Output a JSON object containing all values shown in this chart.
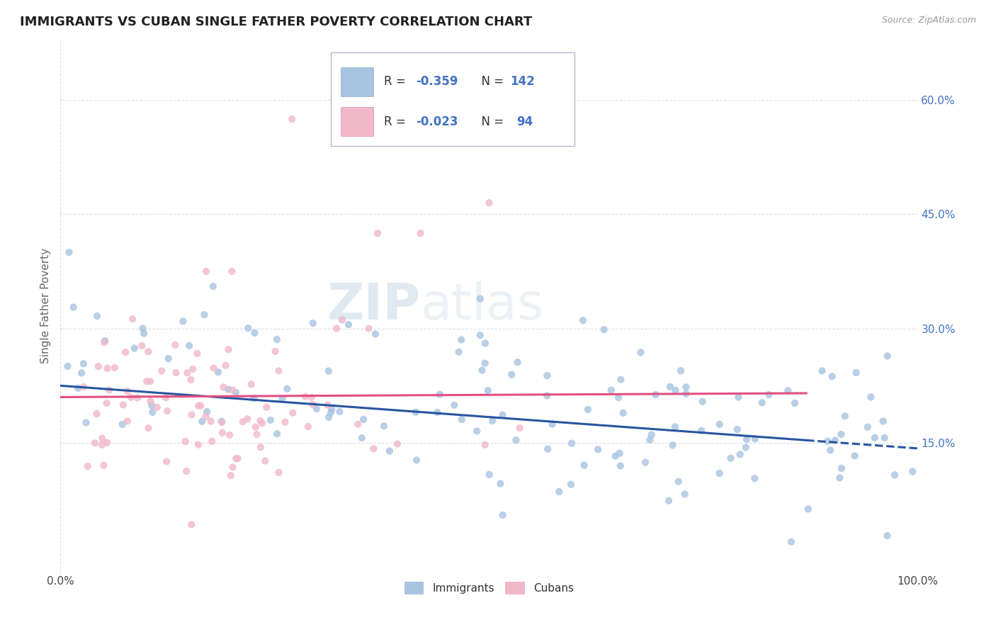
{
  "title": "IMMIGRANTS VS CUBAN SINGLE FATHER POVERTY CORRELATION CHART",
  "source": "Source: ZipAtlas.com",
  "ylabel": "Single Father Poverty",
  "xlim": [
    0.0,
    1.0
  ],
  "ylim": [
    -0.02,
    0.68
  ],
  "xtick_labels": [
    "0.0%",
    "100.0%"
  ],
  "ytick_labels": [
    "15.0%",
    "30.0%",
    "45.0%",
    "60.0%"
  ],
  "ytick_positions": [
    0.15,
    0.3,
    0.45,
    0.6
  ],
  "legend_label1": "Immigrants",
  "legend_label2": "Cubans",
  "R1": -0.359,
  "N1": 142,
  "R2": -0.023,
  "N2": 94,
  "color_immigrants": "#a8c4e0",
  "color_cubans": "#f0b8c8",
  "line_color_immigrants": "#2855a0",
  "line_color_cubans": "#e05080",
  "watermark_zip": "ZIP",
  "watermark_atlas": "atlas",
  "title_fontsize": 13,
  "axis_fontsize": 11,
  "tick_fontsize": 11,
  "background_color": "#ffffff",
  "grid_color": "#c8d0dc"
}
